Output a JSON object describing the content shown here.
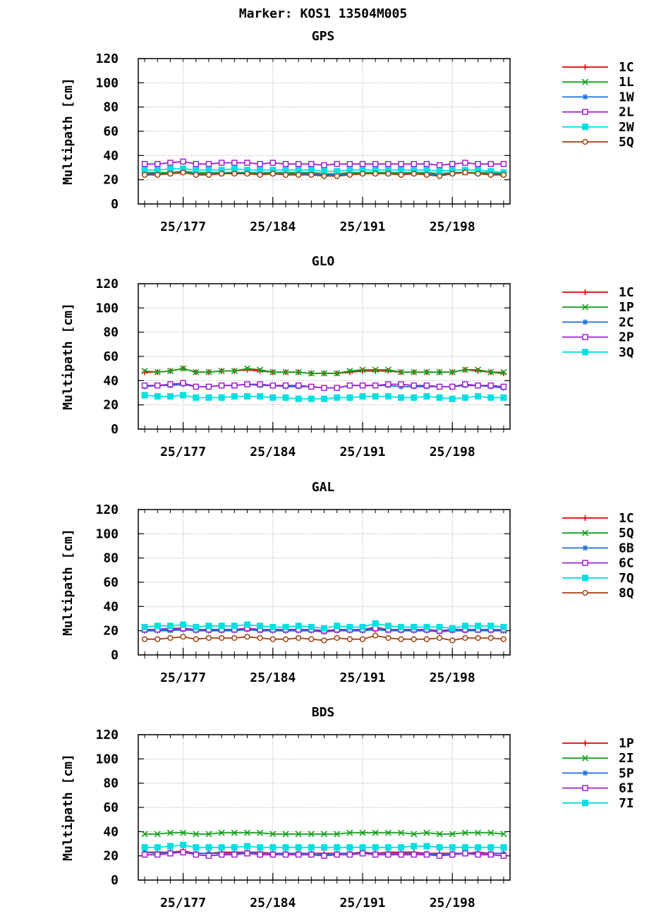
{
  "title": "Marker: KOS1 13504M005",
  "chart_data": [
    {
      "type": "line",
      "title": "GPS",
      "ylabel": "Multipath [cm]",
      "ylim": [
        0,
        120
      ],
      "yticks": [
        0,
        20,
        40,
        60,
        80,
        100,
        120
      ],
      "xlim": [
        173.5,
        202.5
      ],
      "xticks": [
        {
          "value": 177,
          "label": "25/177"
        },
        {
          "value": 184,
          "label": "25/184"
        },
        {
          "value": 191,
          "label": "25/191"
        },
        {
          "value": 198,
          "label": "25/198"
        }
      ],
      "grid": true,
      "legend": "right",
      "x": [
        174,
        175,
        176,
        177,
        178,
        179,
        180,
        181,
        182,
        183,
        184,
        185,
        186,
        187,
        188,
        189,
        190,
        191,
        192,
        193,
        194,
        195,
        196,
        197,
        198,
        199,
        200,
        201,
        202
      ],
      "series": [
        {
          "name": "1C",
          "color": "#e60000",
          "marker": "plus",
          "values": [
            25,
            25,
            25,
            26,
            25,
            25,
            25,
            26,
            25,
            25,
            25,
            25,
            25,
            25,
            24,
            24,
            25,
            25,
            25,
            25,
            25,
            25,
            25,
            24,
            25,
            26,
            25,
            25,
            25
          ]
        },
        {
          "name": "1L",
          "color": "#14a01e",
          "marker": "x",
          "values": [
            26,
            26,
            26,
            27,
            26,
            26,
            26,
            26,
            26,
            26,
            26,
            26,
            26,
            26,
            25,
            25,
            26,
            26,
            26,
            26,
            26,
            26,
            26,
            25,
            26,
            26,
            26,
            26,
            25
          ]
        },
        {
          "name": "1W",
          "color": "#1a70d8",
          "marker": "star",
          "values": [
            25,
            25,
            25,
            26,
            25,
            25,
            25,
            26,
            25,
            25,
            25,
            25,
            25,
            25,
            24,
            24,
            25,
            25,
            25,
            25,
            25,
            25,
            25,
            24,
            25,
            26,
            25,
            25,
            24
          ]
        },
        {
          "name": "2L",
          "color": "#a020d0",
          "marker": "square-open",
          "values": [
            33,
            33,
            34,
            35,
            33,
            33,
            34,
            34,
            34,
            33,
            34,
            33,
            33,
            33,
            32,
            33,
            33,
            33,
            33,
            33,
            33,
            33,
            33,
            32,
            33,
            34,
            33,
            33,
            33
          ]
        },
        {
          "name": "2W",
          "color": "#00e0e0",
          "marker": "square-filled",
          "values": [
            28,
            28,
            29,
            29,
            28,
            28,
            28,
            29,
            28,
            28,
            28,
            28,
            28,
            28,
            27,
            27,
            28,
            28,
            28,
            28,
            28,
            28,
            28,
            27,
            28,
            28,
            28,
            27,
            26
          ]
        },
        {
          "name": "5Q",
          "color": "#a04010",
          "marker": "circle",
          "values": [
            24,
            24,
            25,
            26,
            24,
            24,
            25,
            25,
            25,
            24,
            25,
            24,
            24,
            24,
            23,
            23,
            24,
            25,
            25,
            25,
            24,
            25,
            24,
            23,
            25,
            26,
            25,
            24,
            24
          ]
        }
      ]
    },
    {
      "type": "line",
      "title": "GLO",
      "ylabel": "Multipath [cm]",
      "ylim": [
        0,
        120
      ],
      "yticks": [
        0,
        20,
        40,
        60,
        80,
        100,
        120
      ],
      "xlim": [
        173.5,
        202.5
      ],
      "xticks": [
        {
          "value": 177,
          "label": "25/177"
        },
        {
          "value": 184,
          "label": "25/184"
        },
        {
          "value": 191,
          "label": "25/191"
        },
        {
          "value": 198,
          "label": "25/198"
        }
      ],
      "grid": true,
      "legend": "right",
      "x": [
        174,
        175,
        176,
        177,
        178,
        179,
        180,
        181,
        182,
        183,
        184,
        185,
        186,
        187,
        188,
        189,
        190,
        191,
        192,
        193,
        194,
        195,
        196,
        197,
        198,
        199,
        200,
        201,
        202
      ],
      "series": [
        {
          "name": "1C",
          "color": "#e60000",
          "marker": "plus",
          "values": [
            47,
            47,
            48,
            50,
            47,
            47,
            48,
            48,
            49,
            48,
            47,
            47,
            47,
            46,
            46,
            46,
            47,
            48,
            48,
            48,
            47,
            47,
            47,
            47,
            47,
            49,
            48,
            47,
            46
          ]
        },
        {
          "name": "1P",
          "color": "#14a01e",
          "marker": "x",
          "values": [
            48,
            47,
            48,
            50,
            47,
            47,
            48,
            48,
            50,
            49,
            47,
            47,
            47,
            46,
            46,
            46,
            48,
            49,
            49,
            49,
            47,
            47,
            47,
            47,
            47,
            49,
            49,
            47,
            47
          ]
        },
        {
          "name": "2C",
          "color": "#1a70d8",
          "marker": "star",
          "values": [
            35,
            36,
            36,
            37,
            35,
            35,
            36,
            36,
            37,
            36,
            36,
            35,
            35,
            35,
            34,
            34,
            36,
            36,
            36,
            36,
            35,
            35,
            35,
            35,
            35,
            36,
            36,
            35,
            34
          ]
        },
        {
          "name": "2P",
          "color": "#a020d0",
          "marker": "square-open",
          "values": [
            36,
            36,
            37,
            38,
            35,
            35,
            36,
            36,
            37,
            37,
            36,
            36,
            36,
            35,
            34,
            34,
            36,
            36,
            36,
            37,
            37,
            36,
            36,
            35,
            35,
            37,
            36,
            36,
            35
          ]
        },
        {
          "name": "3Q",
          "color": "#00e0e0",
          "marker": "square-filled",
          "values": [
            28,
            27,
            27,
            28,
            26,
            26,
            26,
            27,
            27,
            27,
            26,
            26,
            25,
            25,
            25,
            26,
            26,
            27,
            27,
            27,
            26,
            26,
            27,
            26,
            25,
            26,
            27,
            26,
            26
          ]
        }
      ]
    },
    {
      "type": "line",
      "title": "GAL",
      "ylabel": "Multipath [cm]",
      "ylim": [
        0,
        120
      ],
      "yticks": [
        0,
        20,
        40,
        60,
        80,
        100,
        120
      ],
      "xlim": [
        173.5,
        202.5
      ],
      "xticks": [
        {
          "value": 177,
          "label": "25/177"
        },
        {
          "value": 184,
          "label": "25/184"
        },
        {
          "value": 191,
          "label": "25/191"
        },
        {
          "value": 198,
          "label": "25/198"
        }
      ],
      "grid": true,
      "legend": "right",
      "x": [
        174,
        175,
        176,
        177,
        178,
        179,
        180,
        181,
        182,
        183,
        184,
        185,
        186,
        187,
        188,
        189,
        190,
        191,
        192,
        193,
        194,
        195,
        196,
        197,
        198,
        199,
        200,
        201,
        202
      ],
      "series": [
        {
          "name": "1C",
          "color": "#e60000",
          "marker": "plus",
          "values": [
            20,
            20,
            21,
            21,
            20,
            20,
            20,
            21,
            21,
            20,
            20,
            20,
            20,
            20,
            19,
            20,
            20,
            20,
            22,
            21,
            20,
            20,
            20,
            20,
            20,
            20,
            21,
            20,
            20
          ]
        },
        {
          "name": "5Q",
          "color": "#14a01e",
          "marker": "x",
          "values": [
            21,
            21,
            21,
            22,
            21,
            21,
            21,
            21,
            22,
            21,
            21,
            21,
            21,
            21,
            20,
            21,
            21,
            21,
            23,
            21,
            21,
            21,
            21,
            20,
            21,
            21,
            21,
            21,
            20
          ]
        },
        {
          "name": "6B",
          "color": "#1a70d8",
          "marker": "star",
          "values": [
            20,
            20,
            20,
            21,
            20,
            20,
            20,
            20,
            21,
            20,
            20,
            20,
            20,
            20,
            19,
            20,
            20,
            20,
            21,
            20,
            20,
            20,
            20,
            19,
            20,
            20,
            20,
            20,
            20
          ]
        },
        {
          "name": "6C",
          "color": "#a020d0",
          "marker": "square-open",
          "values": [
            21,
            21,
            22,
            22,
            21,
            21,
            21,
            21,
            22,
            21,
            21,
            21,
            21,
            21,
            20,
            21,
            21,
            21,
            22,
            21,
            21,
            21,
            21,
            20,
            21,
            21,
            21,
            21,
            21
          ]
        },
        {
          "name": "7Q",
          "color": "#00e0e0",
          "marker": "square-filled",
          "values": [
            23,
            24,
            24,
            25,
            23,
            24,
            24,
            24,
            25,
            24,
            23,
            23,
            24,
            23,
            22,
            24,
            23,
            23,
            26,
            24,
            23,
            23,
            23,
            23,
            22,
            24,
            24,
            24,
            23
          ]
        },
        {
          "name": "8Q",
          "color": "#a04010",
          "marker": "circle",
          "values": [
            13,
            13,
            14,
            15,
            13,
            14,
            14,
            14,
            15,
            14,
            13,
            13,
            14,
            13,
            12,
            14,
            13,
            13,
            16,
            14,
            13,
            13,
            13,
            14,
            12,
            14,
            14,
            14,
            13
          ]
        }
      ]
    },
    {
      "type": "line",
      "title": "BDS",
      "ylabel": "Multipath [cm]",
      "ylim": [
        0,
        120
      ],
      "yticks": [
        0,
        20,
        40,
        60,
        80,
        100,
        120
      ],
      "xlim": [
        173.5,
        202.5
      ],
      "xticks": [
        {
          "value": 177,
          "label": "25/177"
        },
        {
          "value": 184,
          "label": "25/184"
        },
        {
          "value": 191,
          "label": "25/191"
        },
        {
          "value": 198,
          "label": "25/198"
        }
      ],
      "grid": true,
      "legend": "right",
      "x": [
        174,
        175,
        176,
        177,
        178,
        179,
        180,
        181,
        182,
        183,
        184,
        185,
        186,
        187,
        188,
        189,
        190,
        191,
        192,
        193,
        194,
        195,
        196,
        197,
        198,
        199,
        200,
        201,
        202
      ],
      "series": [
        {
          "name": "1P",
          "color": "#e60000",
          "marker": "plus",
          "values": [
            23,
            23,
            23,
            24,
            22,
            22,
            23,
            23,
            23,
            23,
            22,
            22,
            22,
            22,
            22,
            22,
            22,
            23,
            22,
            23,
            23,
            23,
            22,
            22,
            22,
            22,
            23,
            22,
            22
          ]
        },
        {
          "name": "2I",
          "color": "#14a01e",
          "marker": "x",
          "values": [
            38,
            38,
            39,
            39,
            38,
            38,
            39,
            39,
            39,
            39,
            38,
            38,
            38,
            38,
            38,
            38,
            39,
            39,
            39,
            39,
            39,
            38,
            39,
            38,
            38,
            39,
            39,
            39,
            38
          ]
        },
        {
          "name": "5P",
          "color": "#1a70d8",
          "marker": "star",
          "values": [
            23,
            22,
            23,
            23,
            22,
            22,
            22,
            22,
            23,
            22,
            22,
            22,
            22,
            22,
            21,
            22,
            22,
            22,
            22,
            22,
            22,
            22,
            22,
            21,
            22,
            22,
            22,
            22,
            22
          ]
        },
        {
          "name": "6I",
          "color": "#a020d0",
          "marker": "square-open",
          "values": [
            21,
            21,
            22,
            23,
            21,
            20,
            21,
            21,
            22,
            21,
            21,
            21,
            21,
            21,
            20,
            21,
            21,
            22,
            21,
            21,
            21,
            21,
            21,
            20,
            21,
            22,
            21,
            21,
            20
          ]
        },
        {
          "name": "7I",
          "color": "#00e0e0",
          "marker": "square-filled",
          "values": [
            27,
            27,
            28,
            29,
            27,
            27,
            27,
            27,
            28,
            27,
            27,
            27,
            27,
            27,
            27,
            27,
            27,
            27,
            27,
            27,
            27,
            28,
            28,
            27,
            27,
            27,
            27,
            27,
            27
          ]
        }
      ]
    }
  ]
}
